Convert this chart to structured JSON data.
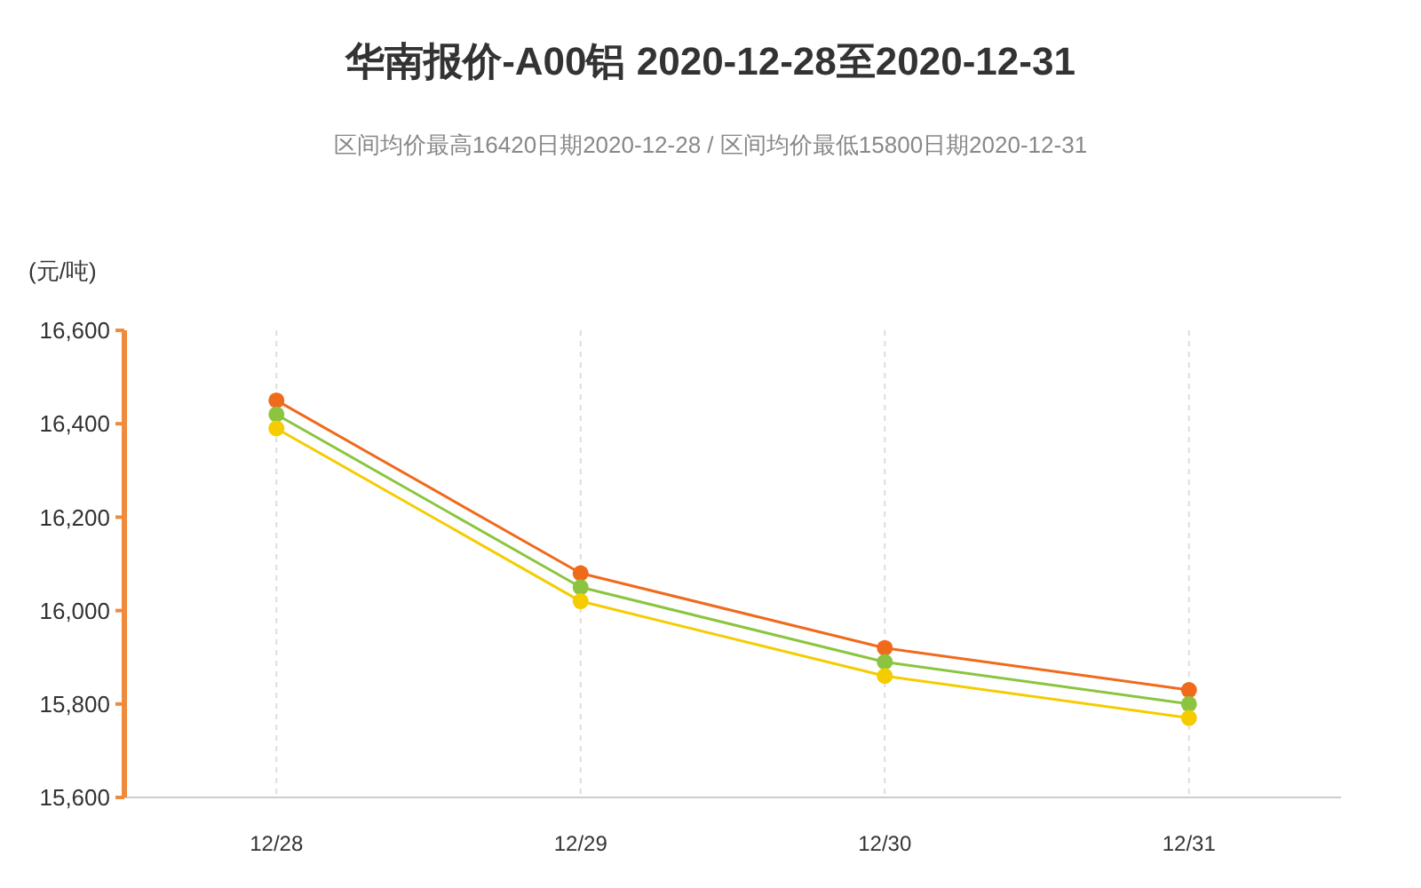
{
  "chart_data": {
    "type": "line",
    "title": "华南报价-A00铝 2020-12-28至2020-12-31",
    "subtitle": "区间均价最高16420日期2020-12-28 / 区间均价最低15800日期2020-12-31",
    "ylabel": "(元/吨)",
    "categories": [
      "12/28",
      "12/29",
      "12/30",
      "12/31"
    ],
    "series": [
      {
        "color": "#f06a1c",
        "values": [
          16450,
          16080,
          15920,
          15830
        ]
      },
      {
        "color": "#8bc53f",
        "values": [
          16420,
          16050,
          15890,
          15800
        ]
      },
      {
        "color": "#f5cc00",
        "values": [
          16390,
          16020,
          15860,
          15770
        ]
      }
    ],
    "ylim": [
      15600,
      16600
    ],
    "yticks": [
      {
        "value": 15600,
        "label": "15,600"
      },
      {
        "value": 15800,
        "label": "15,800"
      },
      {
        "value": 16000,
        "label": "16,000"
      },
      {
        "value": 16200,
        "label": "16,200"
      },
      {
        "value": 16400,
        "label": "16,400"
      },
      {
        "value": 16600,
        "label": "16,600"
      }
    ],
    "grid": "x",
    "marker": "circle",
    "line_style": "solid"
  }
}
